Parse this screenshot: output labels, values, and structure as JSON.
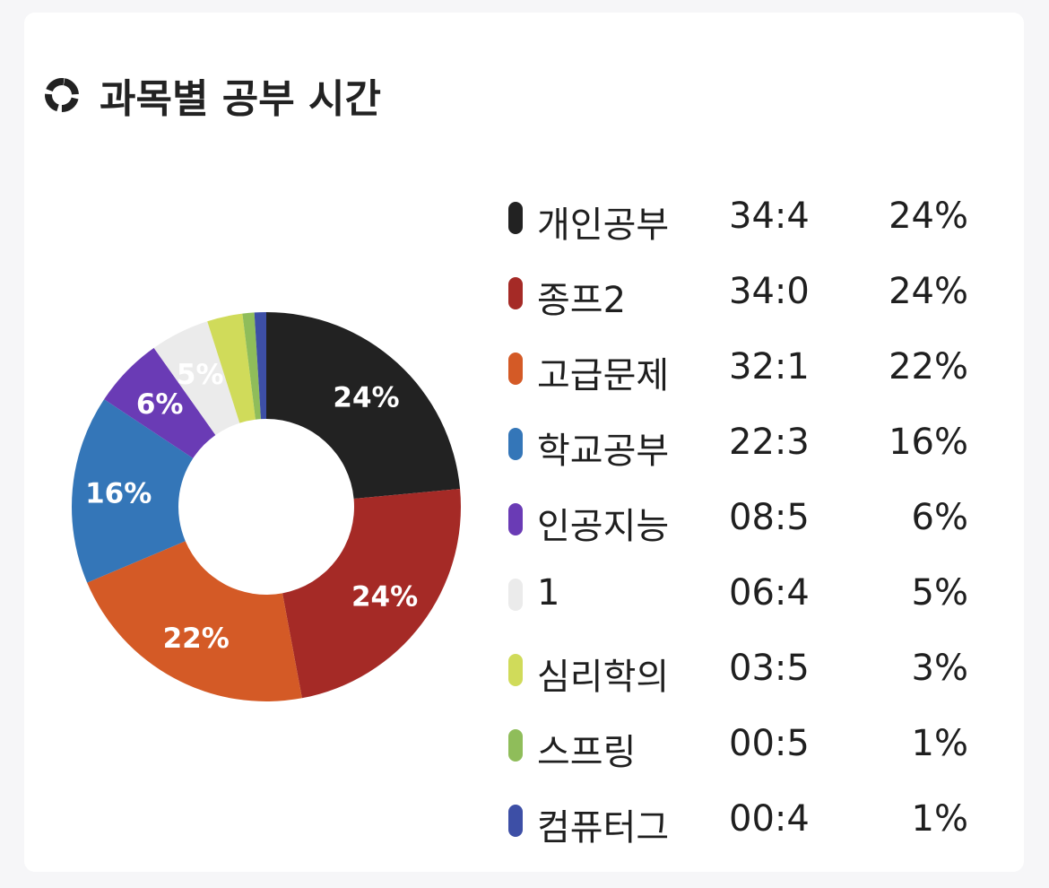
{
  "header": {
    "title": "과목별 공부 시간",
    "icon": "donut-chart-icon"
  },
  "chart_data": {
    "type": "pie",
    "donut": true,
    "legend_placement": "right",
    "slices": [
      {
        "name": "개인공부",
        "time": "34:4",
        "percent": 24,
        "label": "24%",
        "color": "#222222"
      },
      {
        "name": "종프2",
        "time": "34:0",
        "percent": 24,
        "label": "24%",
        "color": "#a52a26"
      },
      {
        "name": "고급문제",
        "time": "32:1",
        "percent": 22,
        "label": "22%",
        "color": "#d45a26"
      },
      {
        "name": "학교공부",
        "time": "22:3",
        "percent": 16,
        "label": "16%",
        "color": "#3476b8"
      },
      {
        "name": "인공지능",
        "time": "08:5",
        "percent": 6,
        "label": "6%",
        "color": "#6a3bb5"
      },
      {
        "name": "1",
        "time": "06:4",
        "percent": 5,
        "label": "5%",
        "color": "#ebebeb"
      },
      {
        "name": "심리학의",
        "time": "03:5",
        "percent": 3,
        "label": "3%",
        "color": "#d0db5a"
      },
      {
        "name": "스프링",
        "time": "00:5",
        "percent": 1,
        "label": "1%",
        "color": "#8fbd5a"
      },
      {
        "name": "컴퓨터그",
        "time": "00:4",
        "percent": 1,
        "label": "1%",
        "color": "#3d4fa6"
      }
    ]
  }
}
